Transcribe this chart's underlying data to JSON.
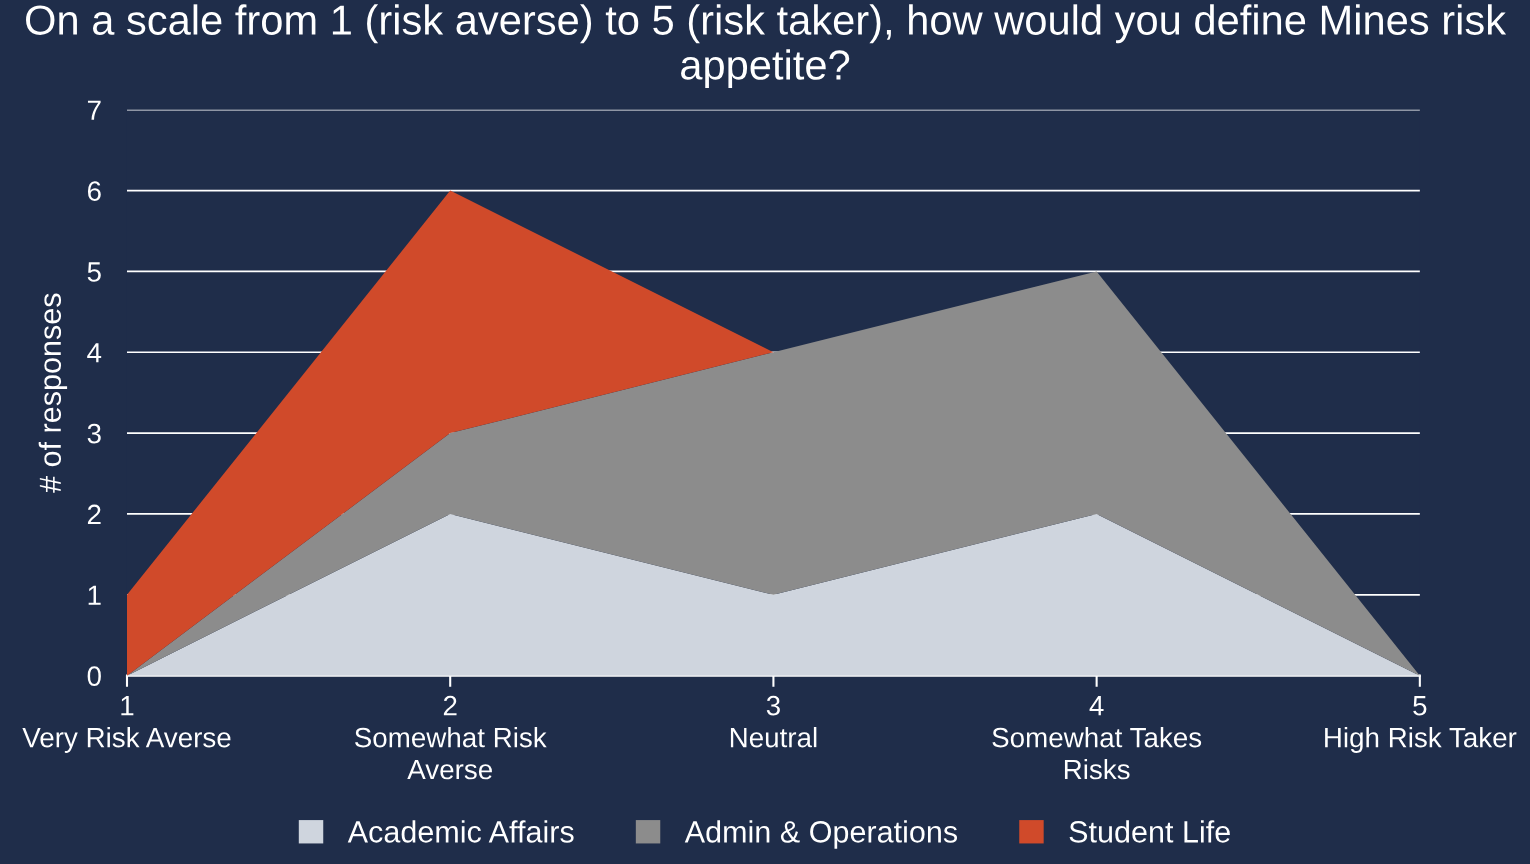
{
  "chart_data": {
    "type": "area",
    "stacked": true,
    "title": "On a scale from 1 (risk averse) to 5 (risk taker), how would you define Mines risk appetite?",
    "ylabel": "# of responses",
    "categories": [
      "1\nVery Risk Averse",
      "2\nSomewhat Risk\nAverse",
      "3\nNeutral",
      "4\nSomewhat Takes\nRisks",
      "5\nHigh Risk Taker"
    ],
    "series": [
      {
        "name": "Academic Affairs",
        "color": "#cfd5de",
        "values": [
          0,
          2,
          1,
          2,
          0
        ]
      },
      {
        "name": "Admin & Operations",
        "color": "#8c8c8c",
        "values": [
          0,
          1,
          3,
          3,
          0
        ]
      },
      {
        "name": "Student Life",
        "color": "#d04a2a",
        "values": [
          1,
          3,
          0,
          0,
          0
        ]
      }
    ],
    "ylim": [
      0,
      7
    ],
    "yticks": [
      0,
      1,
      2,
      3,
      4,
      5,
      6,
      7
    ],
    "grid": "y",
    "legend": "bottom"
  }
}
